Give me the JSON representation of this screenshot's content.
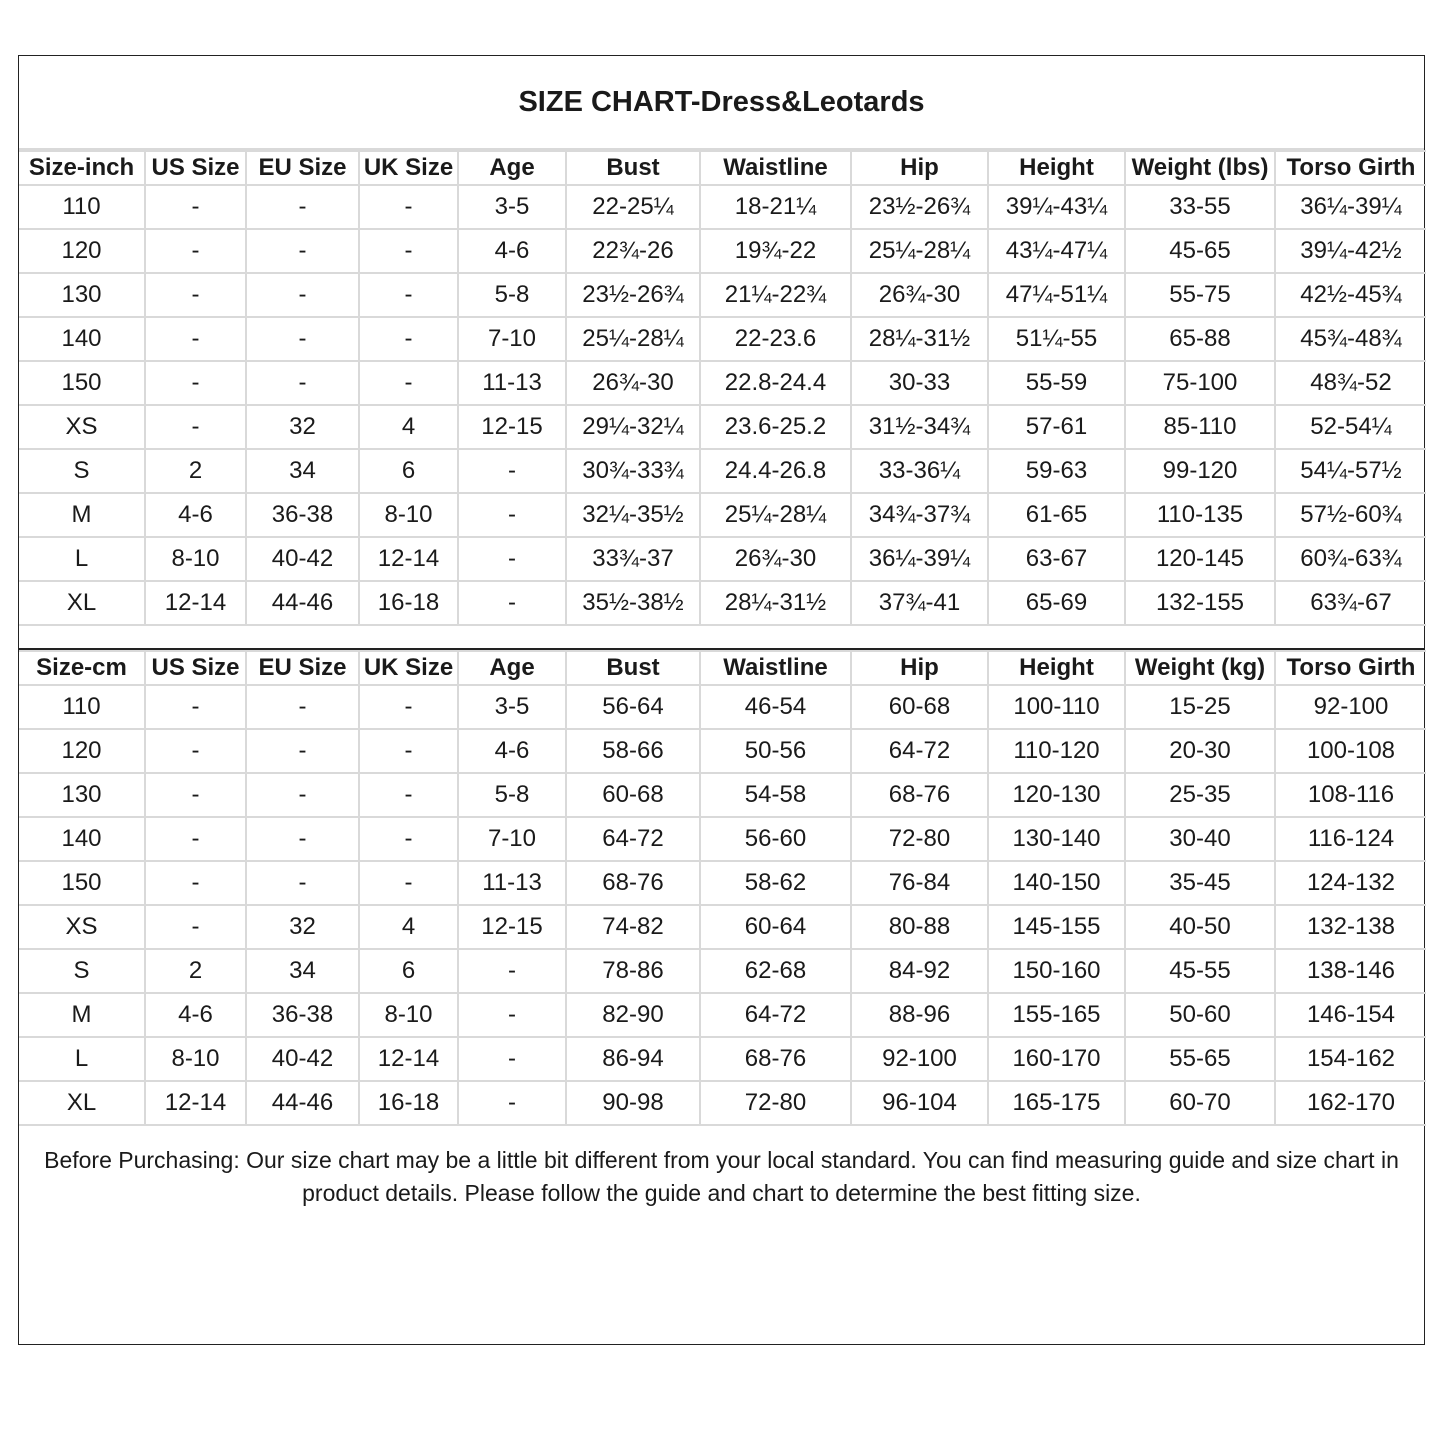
{
  "title": "SIZE CHART-Dress&Leotards",
  "inch_table": {
    "headers": [
      "Size-inch",
      "US Size",
      "EU Size",
      "UK Size",
      "Age",
      "Bust",
      "Waistline",
      "Hip",
      "Height",
      "Weight (lbs)",
      "Torso Girth"
    ],
    "rows": [
      [
        "110",
        "-",
        "-",
        "-",
        "3-5",
        "22-25¼",
        "18-21¼",
        "23½-26¾",
        "39¼-43¼",
        "33-55",
        "36¼-39¼"
      ],
      [
        "120",
        "-",
        "-",
        "-",
        "4-6",
        "22¾-26",
        "19¾-22",
        "25¼-28¼",
        "43¼-47¼",
        "45-65",
        "39¼-42½"
      ],
      [
        "130",
        "-",
        "-",
        "-",
        "5-8",
        "23½-26¾",
        "21¼-22¾",
        "26¾-30",
        "47¼-51¼",
        "55-75",
        "42½-45¾"
      ],
      [
        "140",
        "-",
        "-",
        "-",
        "7-10",
        "25¼-28¼",
        "22-23.6",
        "28¼-31½",
        "51¼-55",
        "65-88",
        "45¾-48¾"
      ],
      [
        "150",
        "-",
        "-",
        "-",
        "11-13",
        "26¾-30",
        "22.8-24.4",
        "30-33",
        "55-59",
        "75-100",
        "48¾-52"
      ],
      [
        "XS",
        "-",
        "32",
        "4",
        "12-15",
        "29¼-32¼",
        "23.6-25.2",
        "31½-34¾",
        "57-61",
        "85-110",
        "52-54¼"
      ],
      [
        "S",
        "2",
        "34",
        "6",
        "-",
        "30¾-33¾",
        "24.4-26.8",
        "33-36¼",
        "59-63",
        "99-120",
        "54¼-57½"
      ],
      [
        "M",
        "4-6",
        "36-38",
        "8-10",
        "-",
        "32¼-35½",
        "25¼-28¼",
        "34¾-37¾",
        "61-65",
        "110-135",
        "57½-60¾"
      ],
      [
        "L",
        "8-10",
        "40-42",
        "12-14",
        "-",
        "33¾-37",
        "26¾-30",
        "36¼-39¼",
        "63-67",
        "120-145",
        "60¾-63¾"
      ],
      [
        "XL",
        "12-14",
        "44-46",
        "16-18",
        "-",
        "35½-38½",
        "28¼-31½",
        "37¾-41",
        "65-69",
        "132-155",
        "63¾-67"
      ]
    ]
  },
  "cm_table": {
    "headers": [
      "Size-cm",
      "US Size",
      "EU Size",
      "UK Size",
      "Age",
      "Bust",
      "Waistline",
      "Hip",
      "Height",
      "Weight (kg)",
      "Torso Girth"
    ],
    "rows": [
      [
        "110",
        "-",
        "-",
        "-",
        "3-5",
        "56-64",
        "46-54",
        "60-68",
        "100-110",
        "15-25",
        "92-100"
      ],
      [
        "120",
        "-",
        "-",
        "-",
        "4-6",
        "58-66",
        "50-56",
        "64-72",
        "110-120",
        "20-30",
        "100-108"
      ],
      [
        "130",
        "-",
        "-",
        "-",
        "5-8",
        "60-68",
        "54-58",
        "68-76",
        "120-130",
        "25-35",
        "108-116"
      ],
      [
        "140",
        "-",
        "-",
        "-",
        "7-10",
        "64-72",
        "56-60",
        "72-80",
        "130-140",
        "30-40",
        "116-124"
      ],
      [
        "150",
        "-",
        "-",
        "-",
        "11-13",
        "68-76",
        "58-62",
        "76-84",
        "140-150",
        "35-45",
        "124-132"
      ],
      [
        "XS",
        "-",
        "32",
        "4",
        "12-15",
        "74-82",
        "60-64",
        "80-88",
        "145-155",
        "40-50",
        "132-138"
      ],
      [
        "S",
        "2",
        "34",
        "6",
        "-",
        "78-86",
        "62-68",
        "84-92",
        "150-160",
        "45-55",
        "138-146"
      ],
      [
        "M",
        "4-6",
        "36-38",
        "8-10",
        "-",
        "82-90",
        "64-72",
        "88-96",
        "155-165",
        "50-60",
        "146-154"
      ],
      [
        "L",
        "8-10",
        "40-42",
        "12-14",
        "-",
        "86-94",
        "68-76",
        "92-100",
        "160-170",
        "55-65",
        "154-162"
      ],
      [
        "XL",
        "12-14",
        "44-46",
        "16-18",
        "-",
        "90-98",
        "72-80",
        "96-104",
        "165-175",
        "60-70",
        "162-170"
      ]
    ]
  },
  "footer": "Before Purchasing: Our size chart may be a little bit different from your local standard. You can find measuring guide and size chart in product details. Please follow the guide and chart to determine the best fitting size."
}
